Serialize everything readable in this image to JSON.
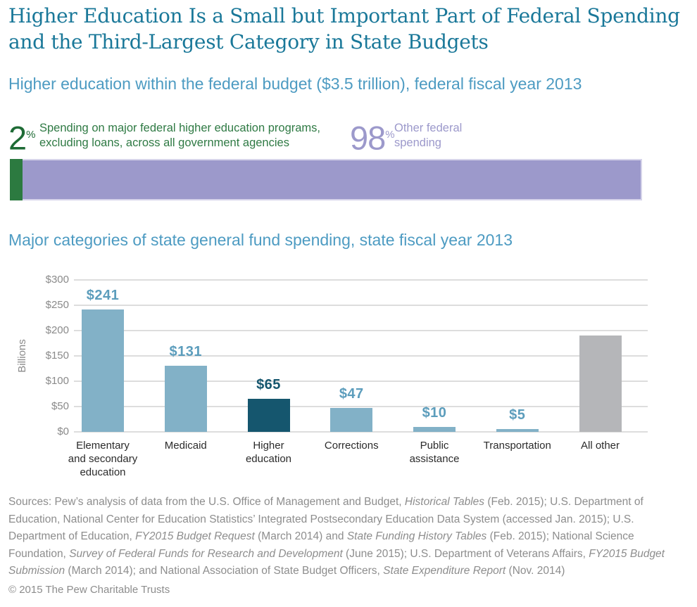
{
  "header": {
    "title_line1": "Higher Education Is a Small but Important Part of Federal Spending",
    "title_line2": "and the Third-Largest Category in State Budgets"
  },
  "colors": {
    "title_teal": "#1A7899",
    "subtitle_blue": "#4D9BC2",
    "green_numeral": "#1E6B35",
    "green_text": "#2F7A44",
    "green_bar": "#2C7A40",
    "purple": "#9C99CB",
    "bar_light_blue": "#82B1C7",
    "bar_dark_teal": "#15566E",
    "bar_gray": "#B5B6B9",
    "value_label_blue": "#5C9DBC",
    "axis_gray": "#8A8A8A",
    "grid_gray": "#DDDDDD"
  },
  "chart_data": [
    {
      "type": "bar",
      "subtype": "horizontal-stacked-percent",
      "title": "Higher education within the federal budget ($3.5 trillion), federal fiscal year 2013",
      "segments": [
        {
          "value": "2",
          "percent_sign": "%",
          "label": "Spending on major federal higher education programs, excluding loans, across all government agencies",
          "color": "#2C7A40"
        },
        {
          "value": "98",
          "percent_sign": "%",
          "label": "Other federal spending",
          "color": "#9C99CB"
        }
      ]
    },
    {
      "type": "bar",
      "title": "Major categories of state general fund spending, state fiscal year 2013",
      "ylabel": "Billions",
      "ylim": [
        0,
        300
      ],
      "ytick_step": 50,
      "ytick_prefix": "$",
      "grid": true,
      "legend_position": "none",
      "categories": [
        [
          "Elementary",
          "and secondary",
          "education"
        ],
        [
          "Medicaid"
        ],
        [
          "Higher",
          "education"
        ],
        [
          "Corrections"
        ],
        [
          "Public",
          "assistance"
        ],
        [
          "Transportation"
        ],
        [
          "All other"
        ]
      ],
      "values": [
        241,
        131,
        65,
        47,
        10,
        5,
        190
      ],
      "value_labels": [
        "$241",
        "$131",
        "$65",
        "$47",
        "$10",
        "$5",
        null
      ],
      "bar_colors": [
        "#82B1C7",
        "#82B1C7",
        "#15566E",
        "#82B1C7",
        "#82B1C7",
        "#82B1C7",
        "#B5B6B9"
      ],
      "value_label_colors": [
        "#5C9DBC",
        "#5C9DBC",
        "#15566E",
        "#5C9DBC",
        "#5C9DBC",
        "#5C9DBC",
        null
      ]
    }
  ],
  "sources": {
    "segments": [
      {
        "text": "Sources: Pew’s analysis of data from the U.S. Office of Management and Budget, ",
        "italic": false
      },
      {
        "text": "Historical Tables",
        "italic": true
      },
      {
        "text": " (Feb. 2015); U.S. Department of Education, National Center for Education Statistics’ Integrated Postsecondary Education Data System (accessed Jan. 2015); U.S. Department of Education, ",
        "italic": false
      },
      {
        "text": "FY2015 Budget Request",
        "italic": true
      },
      {
        "text": " (March 2014) and ",
        "italic": false
      },
      {
        "text": "State Funding History Tables",
        "italic": true
      },
      {
        "text": " (Feb. 2015); National Science Foundation, ",
        "italic": false
      },
      {
        "text": "Survey of Federal Funds for Research and Development",
        "italic": true
      },
      {
        "text": " (June 2015); U.S. Department of Veterans Affairs, ",
        "italic": false
      },
      {
        "text": "FY2015 Budget Submission",
        "italic": true
      },
      {
        "text": " (March 2014); and National Association of State Budget Officers, ",
        "italic": false
      },
      {
        "text": "State Expenditure Report",
        "italic": true
      },
      {
        "text": " (Nov. 2014)",
        "italic": false
      }
    ]
  },
  "footer": {
    "copyright": "© 2015 The Pew Charitable Trusts"
  }
}
